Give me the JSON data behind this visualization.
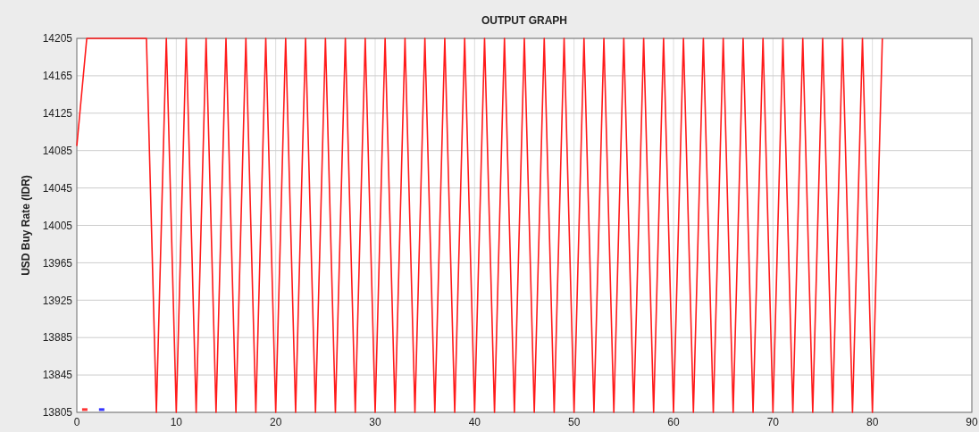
{
  "chart_data": {
    "type": "line",
    "title": "OUTPUT GRAPH",
    "ylabel": "USD Buy Rate (IDR)",
    "xlim": [
      0,
      90
    ],
    "xticks": [
      0,
      10,
      20,
      30,
      40,
      50,
      60,
      70,
      80,
      90
    ],
    "ylim": [
      13805,
      14205
    ],
    "yticks": [
      13805,
      13845,
      13885,
      13925,
      13965,
      14005,
      14045,
      14085,
      14125,
      14165,
      14205
    ],
    "grid": true,
    "marker": "none",
    "line_style": "solid",
    "series": [
      {
        "color": "#ff1a1a",
        "x": [
          0,
          1,
          2,
          3,
          4,
          5,
          6,
          7,
          8,
          9,
          10,
          11,
          12,
          13,
          14,
          15,
          16,
          17,
          18,
          19,
          20,
          21,
          22,
          23,
          24,
          25,
          26,
          27,
          28,
          29,
          30,
          31,
          32,
          33,
          34,
          35,
          36,
          37,
          38,
          39,
          40,
          41,
          42,
          43,
          44,
          45,
          46,
          47,
          48,
          49,
          50,
          51,
          52,
          53,
          54,
          55,
          56,
          57,
          58,
          59,
          60,
          61,
          62,
          63,
          64,
          65,
          66,
          67,
          68,
          69,
          70,
          71,
          72,
          73,
          74,
          75,
          76,
          77,
          78,
          79,
          80,
          81
        ],
        "values": [
          14090,
          14205,
          14205,
          14205,
          14205,
          14205,
          14205,
          14205,
          13805,
          14205,
          13805,
          14205,
          13805,
          14205,
          13805,
          14205,
          13805,
          14205,
          13805,
          14205,
          13805,
          14205,
          13805,
          14205,
          13805,
          14205,
          13805,
          14205,
          13805,
          14205,
          13805,
          14205,
          13805,
          14205,
          13805,
          14205,
          13805,
          14205,
          13805,
          14205,
          13805,
          14205,
          13805,
          14205,
          13805,
          14205,
          13805,
          14205,
          13805,
          14205,
          13805,
          14205,
          13805,
          14205,
          13805,
          14205,
          13805,
          14205,
          13805,
          14205,
          13805,
          14205,
          13805,
          14205,
          13805,
          14205,
          13805,
          14205,
          13805,
          14205,
          13805,
          14205,
          13805,
          14205,
          13805,
          14205,
          13805,
          14205,
          13805,
          14205,
          13805,
          14205
        ]
      },
      {
        "type": "scatter",
        "marker": "square",
        "color": "#ff3333",
        "x": [
          0.8
        ],
        "values": [
          13808
        ]
      },
      {
        "type": "scatter",
        "marker": "square",
        "color": "#3333ff",
        "x": [
          2.5
        ],
        "values": [
          13808
        ]
      }
    ]
  }
}
